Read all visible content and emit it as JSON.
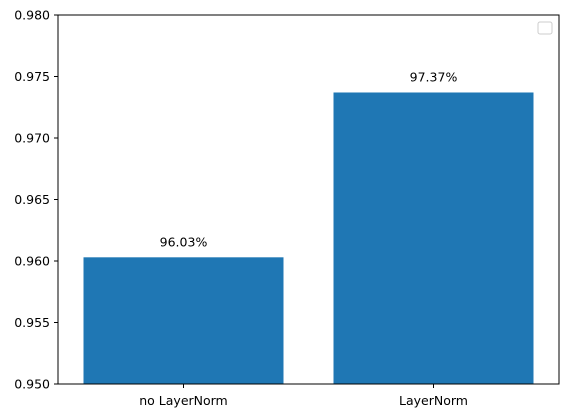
{
  "chart_data": {
    "type": "bar",
    "categories": [
      "no LayerNorm",
      "LayerNorm"
    ],
    "values": [
      0.9603,
      0.9737
    ],
    "data_labels": [
      "96.03%",
      "97.37%"
    ],
    "title": "",
    "xlabel": "",
    "ylabel": "",
    "ylim": [
      0.95,
      0.98
    ],
    "yticks": [
      0.95,
      0.955,
      0.96,
      0.965,
      0.97,
      0.975,
      0.98
    ],
    "ytick_labels": [
      "0.950",
      "0.955",
      "0.960",
      "0.965",
      "0.970",
      "0.975",
      "0.980"
    ],
    "grid": false,
    "legend": {
      "placement": "top-right",
      "entries": []
    },
    "colors": {
      "bar": "#1f77b4",
      "axis": "#000000"
    }
  }
}
